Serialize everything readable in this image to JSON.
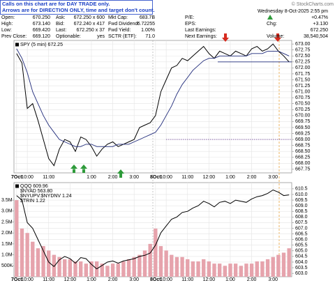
{
  "header": {
    "note": [
      "Calls on this chart are for DAY TRADE only.",
      "Arrows are for DIRECTION ONLY, time and target don't count."
    ],
    "watermark": "© StockCharts.com",
    "date": "Wednesday 8-Oct-2025 2:55 pm",
    "rows": [
      [
        "Open:",
        "670.250",
        "Ask:",
        "672.250 x 600",
        "Mkt Cap:",
        "683.7B",
        "P/E:"
      ],
      [
        "High:",
        "673.140",
        "Bid:",
        "672.240 x 417",
        "Fwd Dividend:",
        "6.72255",
        "EPS:"
      ],
      [
        "Low:",
        "669.420",
        "Last:",
        "672.250 x 37",
        "Fwd Yield:",
        "1.00%",
        "Last Earnings:"
      ],
      [
        "Prev Close:",
        "669.120",
        "Optionable:",
        "yes",
        "SCTR (ETF):",
        "71.0",
        "Next Earnings:"
      ]
    ],
    "right": [
      [
        "+0.47%"
      ],
      [
        "Chg:",
        "+3.130"
      ],
      [
        "672.250"
      ],
      [
        "Volume:",
        "38,540,504"
      ]
    ]
  },
  "chart_data": [
    {
      "type": "line",
      "categories": [
        "7Oct",
        null,
        "10:00",
        null,
        null,
        null,
        "11:00",
        null,
        null,
        null,
        null,
        null,
        null,
        null,
        "1:00",
        null,
        null,
        null,
        "2:00",
        null,
        null,
        null,
        "3:00",
        null,
        null,
        null,
        "8Oct",
        null,
        "10:00",
        null,
        null,
        null,
        "11:00",
        null,
        null,
        null,
        "12:00",
        null,
        null,
        null,
        "1:00",
        null,
        null,
        null,
        "2:00",
        null,
        null,
        null,
        "3:00",
        null,
        null,
        null
      ],
      "series": [
        {
          "name": "SPY (5 min) 672.25",
          "color": "#000000",
          "values": [
            672.6,
            672.2,
            670.3,
            670.5,
            669.8,
            669.0,
            668.2,
            667.9,
            668.6,
            669.0,
            668.9,
            668.5,
            669.1,
            669.0,
            668.7,
            668.3,
            668.6,
            668.8,
            668.9,
            668.7,
            668.8,
            668.9,
            669.0,
            669.5,
            669.6,
            669.7,
            670.0,
            671.0,
            671.5,
            672.0,
            672.1,
            672.4,
            672.3,
            672.5,
            672.7,
            672.9,
            672.6,
            672.4,
            672.7,
            672.6,
            672.5,
            672.7,
            672.6,
            672.5,
            672.8,
            672.9,
            672.7,
            672.8,
            673.0,
            672.7,
            672.5,
            672.25
          ]
        },
        {
          "color": "#1f2a7a",
          "values": [
            672.8,
            672.4,
            671.8,
            671.0,
            670.5,
            670.0,
            669.6,
            669.3,
            669.0,
            668.9,
            668.8,
            668.7,
            668.7,
            668.8,
            668.8,
            668.7,
            668.7,
            668.7,
            668.7,
            668.8,
            668.8,
            668.8,
            668.9,
            669.0,
            669.1,
            669.2,
            669.3,
            669.6,
            670.0,
            670.4,
            670.9,
            671.3,
            671.6,
            671.9,
            672.1,
            672.3,
            672.4,
            672.4,
            672.5,
            672.5,
            672.5,
            672.5,
            672.5,
            672.5,
            672.6,
            672.6,
            672.6,
            672.7,
            672.7,
            672.7,
            672.6,
            672.5
          ]
        }
      ],
      "levels": [
        669,
        672.25
      ],
      "ylim": [
        667.6,
        673.15
      ],
      "yticks": [
        {
          "value": 673,
          "label": "673.00"
        },
        {
          "value": 672.75,
          "label": "672.75"
        },
        {
          "value": 672.5,
          "label": "672.50"
        },
        {
          "value": 672.25,
          "label": "672.25"
        },
        {
          "value": 672,
          "label": "672.00"
        },
        {
          "value": 671.75,
          "label": "671.75"
        },
        {
          "value": 671.5,
          "label": "671.50"
        },
        {
          "value": 671.25,
          "label": "671.25"
        },
        {
          "value": 671,
          "label": "671.00"
        },
        {
          "value": 670.75,
          "label": "670.75"
        },
        {
          "value": 670.5,
          "label": "670.50"
        },
        {
          "value": 670.25,
          "label": "670.25"
        },
        {
          "value": 670,
          "label": "670.00"
        },
        {
          "value": 669.75,
          "label": "669.75"
        },
        {
          "value": 669.5,
          "label": "669.50"
        },
        {
          "value": 669.25,
          "label": "669.25"
        },
        {
          "value": 669,
          "label": "669.00"
        },
        {
          "value": 668.75,
          "label": "668.75"
        },
        {
          "value": 668.5,
          "label": "668.50"
        },
        {
          "value": 668.25,
          "label": "668.25"
        },
        {
          "value": 668,
          "label": "668.00"
        },
        {
          "value": 667.75,
          "label": "667.75"
        }
      ],
      "grid": true
    },
    {
      "type": "line",
      "categories": [
        "7Oct",
        null,
        "10:00",
        null,
        null,
        null,
        "11:00",
        null,
        null,
        null,
        "12:00",
        null,
        null,
        null,
        "1:00",
        null,
        null,
        null,
        "2:00",
        null,
        null,
        null,
        "3:00",
        null,
        null,
        null,
        "8Oct",
        null,
        "10:00",
        null,
        null,
        null,
        "11:00",
        null,
        null,
        null,
        "12:00",
        null,
        null,
        null,
        "1:00",
        null,
        null,
        null,
        "2:00",
        null,
        null,
        null,
        "3:00",
        null,
        null,
        null
      ],
      "series": [
        {
          "type": "bar",
          "axis": "y2",
          "color": "#e6a3ac",
          "values": [
            3500000,
            2200000,
            2000000,
            1600000,
            1300000,
            1400000,
            1200000,
            1000000,
            900000,
            800000,
            800000,
            700000,
            700000,
            600000,
            700000,
            700000,
            600000,
            500000,
            600000,
            600000,
            700000,
            800000,
            900000,
            1000000,
            1200000,
            1500000,
            2200000,
            1400000,
            1200000,
            1000000,
            900000,
            900000,
            800000,
            700000,
            700000,
            800000,
            700000,
            600000,
            600000,
            500000,
            600000,
            600000,
            500000,
            600000,
            600000,
            700000,
            700000,
            800000,
            900000,
            1000000,
            1100000,
            1300000
          ]
        },
        {
          "name": "QQQ 609.96",
          "color": "#000000",
          "values": [
            609.9,
            609.5,
            607.5,
            607.0,
            606.0,
            605.0,
            604.0,
            603.6,
            604.2,
            604.5,
            604.3,
            603.9,
            604.4,
            604.3,
            603.8,
            603.4,
            603.7,
            604.0,
            604.1,
            603.9,
            604.1,
            604.2,
            604.3,
            604.5,
            604.6,
            604.8,
            605.5,
            606.6,
            607.2,
            607.8,
            608.0,
            608.4,
            608.5,
            608.8,
            609.0,
            609.4,
            609.2,
            608.9,
            609.3,
            609.4,
            609.2,
            609.5,
            609.4,
            609.3,
            609.6,
            609.8,
            609.9,
            610.1,
            610.4,
            610.2,
            609.9,
            609.96
          ]
        }
      ],
      "labels": [
        "$NYAD 563.80",
        "$NYUPV:$NYDNV 1.24",
        "$TRIN 1.22"
      ],
      "ylim": [
        602.7,
        611.05
      ],
      "yticks": [
        610.5,
        {
          "value": 610,
          "label": "610.0"
        },
        609.5,
        {
          "value": 609,
          "label": "609.0"
        },
        608.5,
        {
          "value": 608,
          "label": "608.0"
        },
        607.5,
        {
          "value": 607,
          "label": "607.0"
        },
        606.5,
        {
          "value": 606,
          "label": "606.0"
        },
        605.5,
        {
          "value": 605,
          "label": "605.0"
        },
        604.5,
        {
          "value": 604,
          "label": "604.0"
        },
        603.5,
        {
          "value": 603,
          "label": "603.0"
        }
      ],
      "y2lim": [
        0,
        4300000
      ],
      "y2ticks": [
        {
          "value": 500000,
          "label": "500K"
        },
        {
          "value": 1000000,
          "label": "1.0M"
        },
        {
          "value": 1500000,
          "label": "1.5M"
        },
        {
          "value": 2000000,
          "label": "2.0M"
        },
        {
          "value": 2500000,
          "label": "2.5M"
        },
        {
          "value": 3000000,
          "label": "3.0M"
        },
        {
          "value": 3500000,
          "label": "3.5M"
        }
      ],
      "grid": true
    }
  ]
}
